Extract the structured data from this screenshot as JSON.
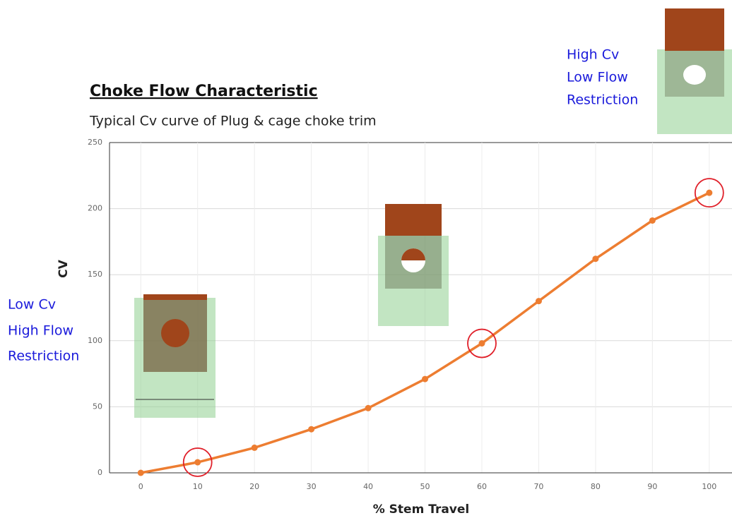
{
  "chart_data": {
    "type": "line",
    "title": "Choke Flow Characteristic",
    "subtitle": "Typical Cv curve of Plug & cage choke trim",
    "x_label": "% Stem Travel",
    "y_label": "CV",
    "x": [
      0,
      10,
      20,
      30,
      40,
      50,
      60,
      70,
      80,
      90,
      100
    ],
    "values": [
      0,
      8,
      19,
      33,
      49,
      71,
      98,
      130,
      162,
      191,
      212
    ],
    "color": "#ed7d31",
    "highlighted_points": [
      1,
      6,
      10
    ],
    "highlight_color": "#e0202a",
    "xlim": [
      -5.5,
      104
    ],
    "xticks": [
      0,
      10,
      20,
      30,
      40,
      50,
      60,
      70,
      80,
      90,
      100
    ],
    "ylim": [
      0,
      250
    ],
    "yticks": [
      0,
      50,
      100,
      150,
      200,
      250
    ],
    "grid": true,
    "annotations": [
      [
        "Low Cv",
        "High Flow",
        "Restriction"
      ],
      [
        "High Cv",
        "Low Flow",
        "Restriction"
      ]
    ]
  }
}
